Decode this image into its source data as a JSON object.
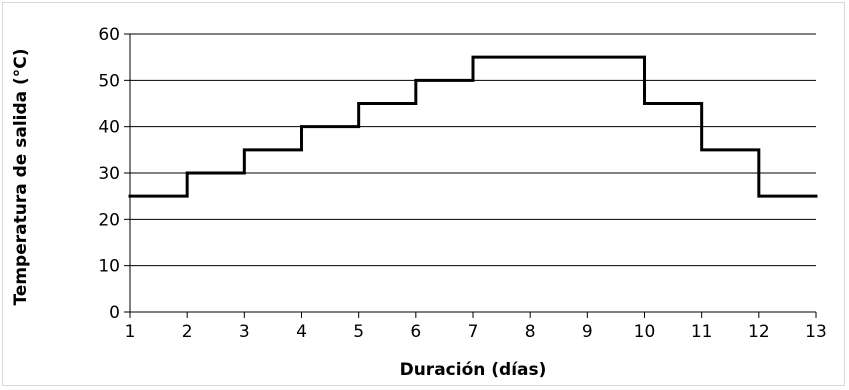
{
  "chart_data": {
    "type": "line",
    "step": true,
    "title": "",
    "xlabel": "Duración (días)",
    "ylabel": "Temperatura de salida (°C)",
    "xlim": [
      1,
      13
    ],
    "ylim": [
      0,
      60
    ],
    "x_ticks": [
      1,
      2,
      3,
      4,
      5,
      6,
      7,
      8,
      9,
      10,
      11,
      12,
      13
    ],
    "y_ticks": [
      0,
      10,
      20,
      30,
      40,
      50,
      60
    ],
    "grid": "horizontal",
    "legend": "none",
    "line_color": "#000000",
    "grid_color": "#000000",
    "steps": [
      {
        "x_start": 1,
        "x_end": 2,
        "y": 25
      },
      {
        "x_start": 2,
        "x_end": 3,
        "y": 30
      },
      {
        "x_start": 3,
        "x_end": 4,
        "y": 35
      },
      {
        "x_start": 4,
        "x_end": 5,
        "y": 40
      },
      {
        "x_start": 5,
        "x_end": 6,
        "y": 45
      },
      {
        "x_start": 6,
        "x_end": 7,
        "y": 50
      },
      {
        "x_start": 7,
        "x_end": 10,
        "y": 55
      },
      {
        "x_start": 10,
        "x_end": 11,
        "y": 45
      },
      {
        "x_start": 11,
        "x_end": 12,
        "y": 35
      },
      {
        "x_start": 12,
        "x_end": 13,
        "y": 25
      }
    ]
  }
}
